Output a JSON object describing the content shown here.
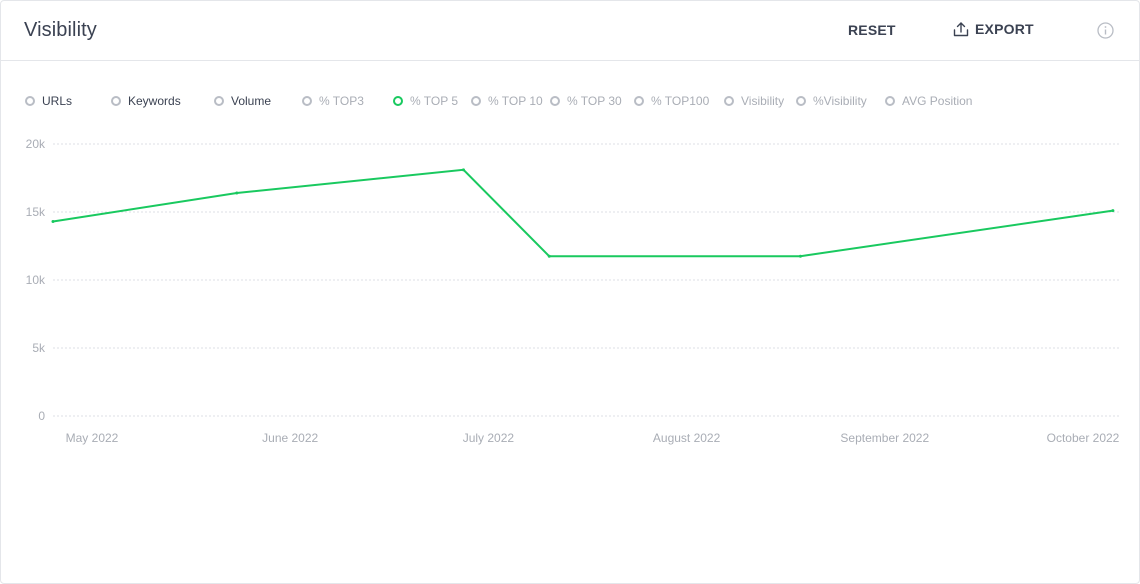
{
  "header": {
    "title": "Visibility",
    "reset_label": "RESET",
    "export_label": "EXPORT"
  },
  "legend": [
    {
      "label": "URLs",
      "state": "dark"
    },
    {
      "label": "Keywords",
      "state": "dark"
    },
    {
      "label": "Volume",
      "state": "dark"
    },
    {
      "label": "% TOP3",
      "state": "inactive"
    },
    {
      "label": "% TOP 5",
      "state": "selected"
    },
    {
      "label": "% TOP 10",
      "state": "inactive"
    },
    {
      "label": "% TOP 30",
      "state": "inactive"
    },
    {
      "label": "% TOP100",
      "state": "inactive"
    },
    {
      "label": "Visibility",
      "state": "inactive"
    },
    {
      "label": "%Visibility",
      "state": "inactive"
    },
    {
      "label": "AVG Position",
      "state": "inactive"
    }
  ],
  "colors": {
    "line": "#19c95f",
    "grid": "#dcdfe4",
    "axis_text": "#a9adb5",
    "text_dark": "#3b4252"
  },
  "chart_data": {
    "type": "line",
    "y_ticks": [
      "0",
      "5k",
      "10k",
      "15k",
      "20k"
    ],
    "y_tick_values": [
      0,
      5000,
      10000,
      15000,
      20000
    ],
    "ylim": [
      0,
      20000
    ],
    "x_tick_labels": [
      "May 2022",
      "June 2022",
      "July 2022",
      "August 2022",
      "September 2022",
      "October 2022"
    ],
    "xlim": [
      "2022-04-25",
      "2022-10-16"
    ],
    "grid": true,
    "series": [
      {
        "x": [
          "2022-04-25",
          "2022-05-25",
          "2022-07-01",
          "2022-07-15",
          "2022-08-25",
          "2022-10-15"
        ],
        "values": [
          14300,
          16400,
          18100,
          11750,
          11750,
          15100
        ]
      }
    ]
  }
}
